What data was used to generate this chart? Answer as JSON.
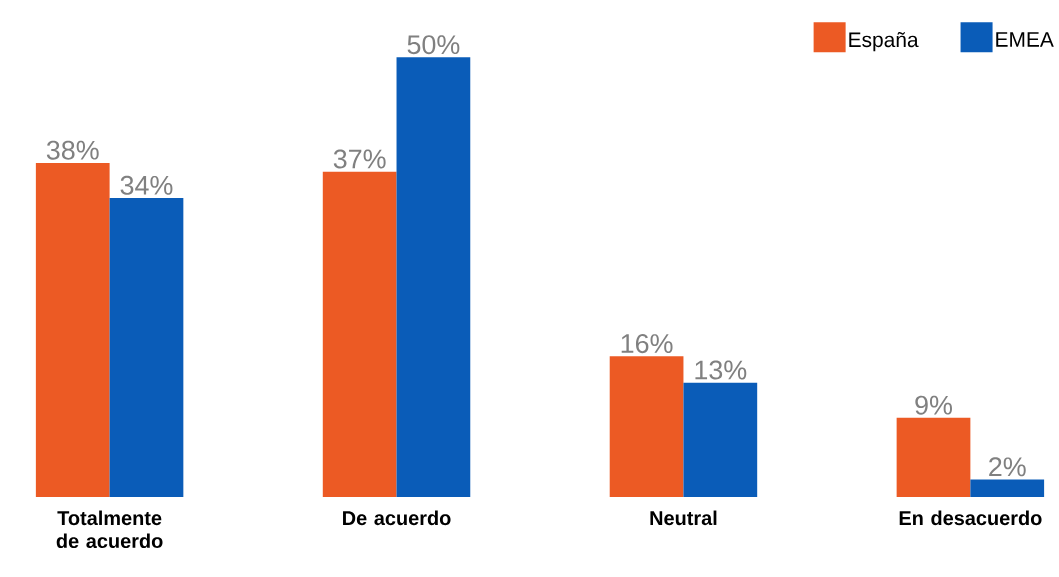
{
  "chart_data": {
    "type": "bar",
    "categories": [
      "Totalmente de acuerdo",
      "De acuerdo",
      "Neutral",
      "En desacuerdo"
    ],
    "series": [
      {
        "name": "España",
        "color": "#ec5a24",
        "values": [
          38,
          37,
          16,
          9
        ],
        "value_labels": [
          "38%",
          "37%",
          "16%",
          "9%"
        ]
      },
      {
        "name": "EMEA",
        "color": "#0a5cb8",
        "values": [
          34,
          50,
          13,
          2
        ],
        "value_labels": [
          "34%",
          "50%",
          "13%",
          "2%"
        ]
      }
    ],
    "legend": "top right",
    "grid": false
  }
}
